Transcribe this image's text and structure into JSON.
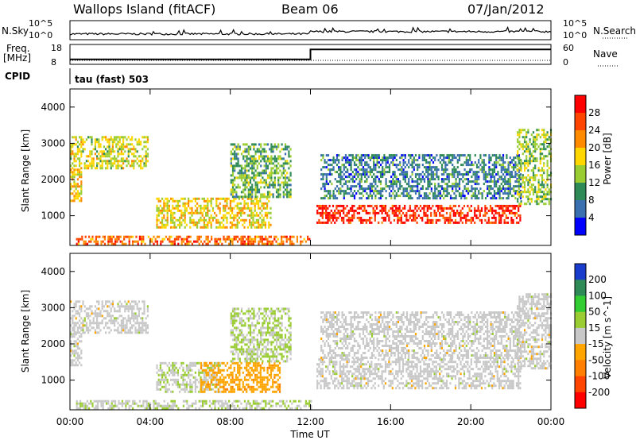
{
  "header": {
    "station": "Wallops Island (fitACF)",
    "beam": "Beam 06",
    "date": "07/Jan/2012"
  },
  "sky_panel": {
    "left_label": "N.Sky",
    "left_ticks": [
      "10^5",
      "10^0"
    ],
    "right_label": "N.Search",
    "right_ticks": [
      "10^5",
      "10^0"
    ]
  },
  "freq_panel": {
    "left_label_1": "Freq.",
    "left_label_2": "[MHz]",
    "left_ticks": [
      "18",
      "8"
    ],
    "right_label": "Nave",
    "right_ticks": [
      "60",
      "0"
    ]
  },
  "cpid": {
    "label": "CPID",
    "value": "tau (fast) 503"
  },
  "chart_data": [
    {
      "type": "line",
      "title": "",
      "series": [
        {
          "name": "N.Sky",
          "x": [
            "00:00",
            "12:00",
            "24:00"
          ],
          "values": [
            4,
            4,
            6
          ]
        },
        {
          "name": "N.Search",
          "x": [
            "00:00",
            "24:00"
          ],
          "values": [
            0,
            0
          ]
        }
      ],
      "ylim": [
        "10^0",
        "10^5"
      ]
    },
    {
      "type": "line",
      "series": [
        {
          "name": "Freq. [MHz]",
          "x": [
            "00:00",
            "12:00",
            "12:01",
            "24:00"
          ],
          "values": [
            10.5,
            10.5,
            15.5,
            15.5
          ]
        },
        {
          "name": "Nave",
          "x": [
            "00:00",
            "24:00"
          ],
          "values": [
            12,
            12
          ]
        }
      ],
      "ylim": [
        8,
        18
      ]
    },
    {
      "type": "heatmap",
      "quantity": "Power",
      "xlabel": "",
      "ylabel": "Slant Range [km]",
      "yticks": [
        "1000",
        "2000",
        "3000",
        "4000"
      ],
      "ylim": [
        180,
        4500
      ],
      "xlim": [
        "00:00",
        "24:00"
      ],
      "colorbar": {
        "label": "Power [dB]",
        "ticks": [
          "28",
          "24",
          "20",
          "16",
          "12",
          "8",
          "4"
        ],
        "colors": [
          "#ff0000",
          "#ff4500",
          "#ff8c00",
          "#ffd700",
          "#9acd32",
          "#2e8b57",
          "#3a6fb0",
          "#0000ff"
        ],
        "range": [
          0,
          32
        ]
      },
      "regions": [
        {
          "t0": 0.0,
          "t1": 3.9,
          "r0": 2300,
          "r1": 3200,
          "power": 16
        },
        {
          "t0": 0.0,
          "t1": 0.6,
          "r0": 1400,
          "r1": 2300,
          "power": 18
        },
        {
          "t0": 0.3,
          "t1": 12.0,
          "r0": 200,
          "r1": 450,
          "power": 24
        },
        {
          "t0": 4.3,
          "t1": 10.0,
          "r0": 700,
          "r1": 1500,
          "power": 18
        },
        {
          "t0": 8.0,
          "t1": 11.0,
          "r0": 1500,
          "r1": 3000,
          "power": 12
        },
        {
          "t0": 12.3,
          "t1": 22.5,
          "r0": 800,
          "r1": 1300,
          "power": 28
        },
        {
          "t0": 12.5,
          "t1": 22.5,
          "r0": 1500,
          "r1": 2700,
          "power": 8
        },
        {
          "t0": 22.3,
          "t1": 24.0,
          "r0": 1300,
          "r1": 3400,
          "power": 14
        }
      ]
    },
    {
      "type": "heatmap",
      "quantity": "Velocity",
      "xlabel": "Time UT",
      "ylabel": "Slant Range [km]",
      "xticks": [
        "00:00",
        "04:00",
        "08:00",
        "12:00",
        "16:00",
        "20:00",
        "00:00"
      ],
      "yticks": [
        "1000",
        "2000",
        "3000",
        "4000"
      ],
      "ylim": [
        180,
        4500
      ],
      "xlim": [
        "00:00",
        "24:00"
      ],
      "colorbar": {
        "label": "Velocity [m s^-1]",
        "ticks": [
          "200",
          "100",
          "50",
          "15",
          "-15",
          "-50",
          "-100",
          "-200"
        ],
        "colors": [
          "#1a3ccc",
          "#2e8b57",
          "#32cd32",
          "#9acd32",
          "#c8c8c8",
          "#ffa500",
          "#ff7f00",
          "#ff4500",
          "#ff0000"
        ],
        "range": [
          -250,
          250
        ]
      },
      "regions": [
        {
          "t0": 0.0,
          "t1": 3.9,
          "r0": 2300,
          "r1": 3200,
          "vel": 0
        },
        {
          "t0": 0.0,
          "t1": 0.6,
          "r0": 1400,
          "r1": 2300,
          "vel": 0
        },
        {
          "t0": 0.3,
          "t1": 12.0,
          "r0": 200,
          "r1": 450,
          "vel": 20
        },
        {
          "t0": 4.3,
          "t1": 7.5,
          "r0": 700,
          "r1": 1500,
          "vel": 20
        },
        {
          "t0": 6.5,
          "t1": 10.5,
          "r0": 700,
          "r1": 1500,
          "vel": -60
        },
        {
          "t0": 8.0,
          "t1": 11.0,
          "r0": 1500,
          "r1": 3000,
          "vel": 30
        },
        {
          "t0": 12.3,
          "t1": 22.5,
          "r0": 800,
          "r1": 1600,
          "vel": 0
        },
        {
          "t0": 12.5,
          "t1": 22.5,
          "r0": 1600,
          "r1": 2900,
          "vel": 0
        },
        {
          "t0": 22.3,
          "t1": 24.0,
          "r0": 1300,
          "r1": 3400,
          "vel": 0
        }
      ]
    }
  ]
}
